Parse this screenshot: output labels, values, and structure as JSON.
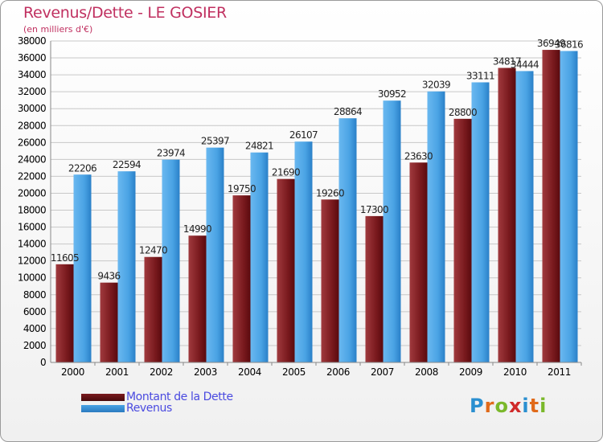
{
  "header": {
    "title": "Revenus/Dette - LE GOSIER",
    "subtitle": "(en milliers d'€)"
  },
  "colors": {
    "debt": "#7a1a1e",
    "revenue": "#4aa3e4",
    "grid": "#c8c8c8",
    "axis_text": "#000000",
    "title": "#c03060",
    "legend_text": "#4a4ae0"
  },
  "legend": {
    "debt_label": "Montant de la Dette",
    "revenue_label": "Revenus"
  },
  "logo": {
    "letters": [
      "P",
      "r",
      "o",
      "x",
      "i",
      "t",
      "i"
    ],
    "colors": [
      "#2a8fd0",
      "#e06a1a",
      "#7ab82a",
      "#d02a2a",
      "#2a8fd0",
      "#e06a1a",
      "#7ab82a"
    ]
  },
  "chart_data": {
    "type": "bar",
    "title": "Revenus/Dette - LE GOSIER",
    "subtitle": "(en milliers d'€)",
    "xlabel": "",
    "ylabel": "",
    "categories": [
      "2000",
      "2001",
      "2002",
      "2003",
      "2004",
      "2005",
      "2006",
      "2007",
      "2008",
      "2009",
      "2010",
      "2011"
    ],
    "series": [
      {
        "name": "Montant de la Dette",
        "values": [
          11605,
          9436,
          12470,
          14990,
          19750,
          21690,
          19260,
          17300,
          23630,
          28800,
          34817,
          36949
        ],
        "labels": [
          "11605",
          "9436",
          "12470",
          "14990",
          "19750",
          "21690",
          "19260",
          "17300",
          "23630",
          "28800",
          "34817",
          "36949"
        ]
      },
      {
        "name": "Revenus",
        "values": [
          22206,
          22594,
          23974,
          25397,
          24821,
          26107,
          28864,
          30952,
          32039,
          33111,
          34444,
          36816
        ],
        "labels": [
          "22206",
          "22594",
          "23974",
          "25397",
          "24821",
          "26107",
          "28864",
          "30952",
          "32039",
          "33111",
          "34444",
          "36816"
        ]
      }
    ],
    "yticks": [
      0,
      2000,
      4000,
      6000,
      8000,
      10000,
      12000,
      14000,
      16000,
      18000,
      20000,
      22000,
      24000,
      26000,
      28000,
      30000,
      32000,
      34000,
      36000,
      38000
    ],
    "ylim": [
      0,
      38000
    ],
    "grid": true,
    "legend_position": "bottom-left"
  }
}
